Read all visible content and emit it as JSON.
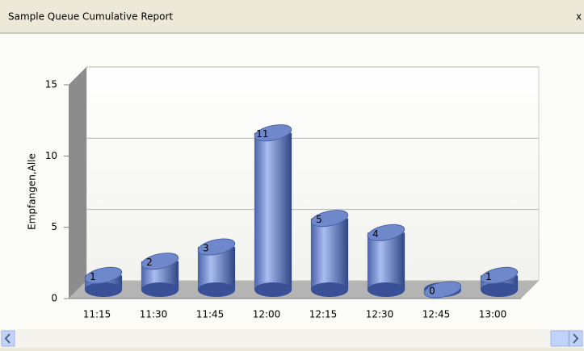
{
  "window_title": "Sample Queue Cumulative Report",
  "close": "x",
  "chart_data": {
    "type": "bar",
    "ylabel": "Empfangen,Alle",
    "categories": [
      "11:15",
      "11:30",
      "11:45",
      "12:00",
      "12:15",
      "12:30",
      "12:45",
      "13:00"
    ],
    "values": [
      1,
      2,
      3,
      11,
      5,
      4,
      0,
      1
    ],
    "color": "#6f88cc",
    "ylim": [
      0,
      15
    ],
    "yticks": [
      0,
      5,
      10,
      15
    ],
    "grid": true
  }
}
